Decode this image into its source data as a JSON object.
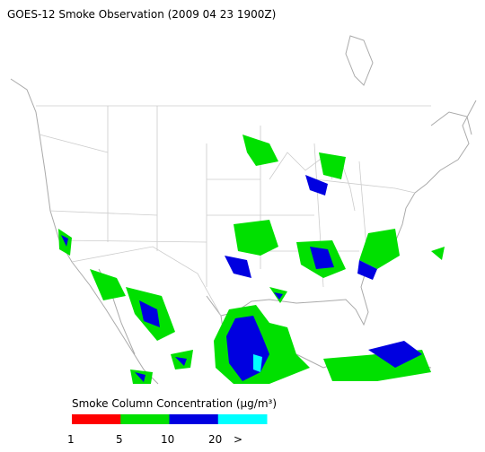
{
  "title": "GOES-12 Smoke Observation (2009 04 23  1900Z)",
  "legend": {
    "title": "Smoke Column Concentration (μg/m³)",
    "colors": [
      "#ff0000",
      "#00e000",
      "#0000e0",
      "#00ffff"
    ],
    "ticks": [
      "1",
      "5",
      "10",
      "20",
      ">"
    ]
  }
}
